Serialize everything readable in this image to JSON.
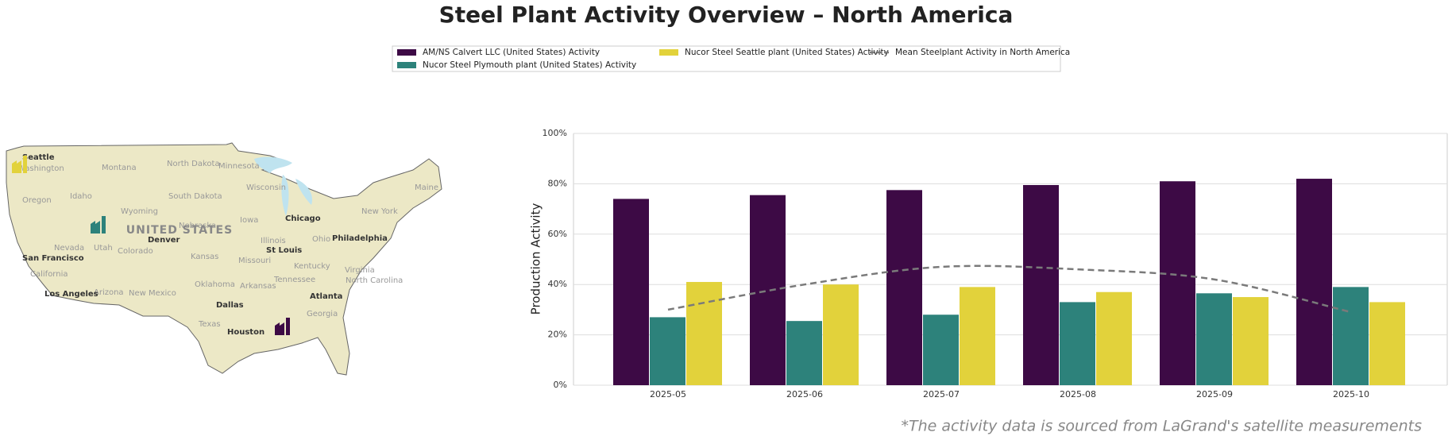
{
  "chart_data": {
    "type": "bar",
    "title": "Steel Plant Activity Overview – North America",
    "ylabel": "Production Activity",
    "footnote": "*The activity data is sourced from LaGrand's satellite measurements",
    "categories": [
      "2025-05",
      "2025-06",
      "2025-07",
      "2025-08",
      "2025-09",
      "2025-10"
    ],
    "series": [
      {
        "name": "AM/NS Calvert LLC (United States) Activity",
        "color": "#3d0a45",
        "values": [
          74,
          75.5,
          77.5,
          79.5,
          81,
          82
        ]
      },
      {
        "name": "Nucor Steel Plymouth plant (United States) Activity",
        "color": "#2d827b",
        "values": [
          27,
          25.5,
          28,
          33,
          36.5,
          39
        ]
      },
      {
        "name": "Nucor Steel Seattle plant (United States) Activity",
        "color": "#e2d23b",
        "values": [
          41,
          40,
          39,
          37,
          35,
          33
        ]
      },
      {
        "name": "Mean Steelplant Activity in North America",
        "type": "line",
        "color": "#7a7a7a",
        "dashed": true,
        "values": [
          30,
          40,
          47,
          46,
          42,
          29
        ]
      }
    ],
    "ylim": [
      0,
      100
    ],
    "yticks": [
      {
        "value": 0,
        "label": "0%"
      },
      {
        "value": 20,
        "label": "20%"
      },
      {
        "value": 40,
        "label": "40%"
      },
      {
        "value": 60,
        "label": "60%"
      },
      {
        "value": 80,
        "label": "80%"
      },
      {
        "value": 100,
        "label": "100%"
      }
    ],
    "grid": true,
    "legend": "top"
  },
  "map": {
    "labels": [
      "Seattle",
      "Washington",
      "Oregon",
      "Idaho",
      "Montana",
      "Wyoming",
      "Nevada",
      "Utah",
      "Colorado",
      "California",
      "Arizona",
      "New Mexico",
      "San Francisco",
      "Los Angeles",
      "Denver",
      "North Dakota",
      "South Dakota",
      "Nebraska",
      "Kansas",
      "Oklahoma",
      "Texas",
      "Dallas",
      "Houston",
      "Minnesota",
      "Iowa",
      "Missouri",
      "Arkansas",
      "Wisconsin",
      "Illinois",
      "Chicago",
      "St Louis",
      "Kentucky",
      "Tennessee",
      "Ohio",
      "Georgia",
      "Atlanta",
      "Virginia",
      "North Carolina",
      "Philadelphia",
      "New York",
      "Maine",
      "UNITED STATES"
    ]
  }
}
